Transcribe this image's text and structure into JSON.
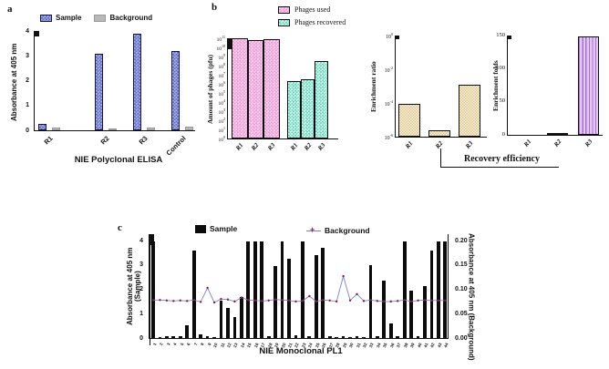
{
  "panels": {
    "a": "a",
    "b": "b",
    "c": "c"
  },
  "chart_data": [
    {
      "id": "a",
      "type": "bar",
      "xlabel": "NIE Polyclonal ELISA",
      "ylabel": "Absorbance at 405 nm",
      "ylim": [
        0,
        4
      ],
      "yticks": [
        0,
        1,
        2,
        3,
        4
      ],
      "categories": [
        "R1",
        "R2",
        "R3",
        "Control"
      ],
      "series": [
        {
          "name": "Sample",
          "values": [
            0.25,
            3.1,
            3.9,
            3.2
          ]
        },
        {
          "name": "Background",
          "values": [
            0.1,
            0.05,
            0.1,
            0.15
          ]
        }
      ],
      "legend_position": "top"
    },
    {
      "id": "b1",
      "type": "bar",
      "yscale": "log",
      "ylabel": "Amount of phages (pfu)",
      "ylim": [
        1,
        100000000000.0
      ],
      "yticks": [
        "10^0",
        "10^1",
        "10^2",
        "10^3",
        "10^4",
        "10^5",
        "10^6",
        "10^7",
        "10^8",
        "10^9",
        "10^10",
        "10^11"
      ],
      "categories": [
        "R1",
        "R2",
        "R3"
      ],
      "series": [
        {
          "name": "Phages used",
          "values": [
            100000000000.0,
            60000000000.0,
            80000000000.0
          ]
        },
        {
          "name": "Phages recovered",
          "values": [
            2000000.0,
            3000000.0,
            300000000.0
          ]
        }
      ],
      "legend_position": "top"
    },
    {
      "id": "b2",
      "type": "bar",
      "yscale": "log",
      "ylabel": "Enrichment ratio",
      "ylim": [
        1e-06,
        1
      ],
      "yticks": [
        "10^0",
        "10^-2",
        "10^-4",
        "10^-6"
      ],
      "categories": [
        "R1",
        "R2",
        "R3"
      ],
      "series": [
        {
          "name": "Enrichment ratio",
          "values": [
            9e-05,
            2.5e-06,
            0.0012
          ]
        }
      ]
    },
    {
      "id": "b3",
      "type": "bar",
      "ylabel": "Enrichment folds",
      "ylim": [
        0,
        150
      ],
      "yticks": [
        0,
        50,
        100,
        150
      ],
      "categories": [
        "R1",
        "R2",
        "R3"
      ],
      "series": [
        {
          "name": "Enrichment folds",
          "values": [
            0,
            3,
            149
          ]
        }
      ],
      "annotation": "Recovery efficiency"
    },
    {
      "id": "c",
      "type": "bar+line",
      "xlabel": "NIE Monoclonal PL1",
      "ylabel_left": "Absorbance at 405 nm (Sample)",
      "ylabel_right": "Absorbance at 405 nm (Background)",
      "ylim_left": [
        0,
        4
      ],
      "yticks_left": [
        0,
        1,
        2,
        3,
        4
      ],
      "ylim_right": [
        0,
        0.2
      ],
      "yticks_right": [
        "0.00",
        "0.05",
        "0.10",
        "0.15",
        "0.20"
      ],
      "legend_marker": "+",
      "categories": [
        "1",
        "2",
        "3",
        "4",
        "5",
        "6",
        "7",
        "8",
        "9",
        "10",
        "11",
        "12",
        "13",
        "14",
        "15",
        "16",
        "17",
        "18",
        "19",
        "20",
        "21",
        "22",
        "23",
        "24",
        "25",
        "26",
        "27",
        "28",
        "29",
        "30",
        "31",
        "32",
        "33",
        "34",
        "35",
        "36",
        "37",
        "38",
        "39",
        "40",
        "41",
        "42",
        "43",
        "44"
      ],
      "series": [
        {
          "name": "Sample",
          "type": "bar",
          "axis": "left",
          "values": [
            3.95,
            0.05,
            0.06,
            0.09,
            0.06,
            0.53,
            3.6,
            0.15,
            0.07,
            0.05,
            1.52,
            1.22,
            0.86,
            1.7,
            3.95,
            3.95,
            3.95,
            0.06,
            2.95,
            3.95,
            3.27,
            0.1,
            3.95,
            0.06,
            3.4,
            3.7,
            0.06,
            0.05,
            0.06,
            0.05,
            0.06,
            0.05,
            3.0,
            0.06,
            2.35,
            0.6,
            0.06,
            3.95,
            1.95,
            0.08,
            2.15,
            3.6,
            3.95,
            3.95
          ]
        },
        {
          "name": "Background",
          "type": "line",
          "axis": "right",
          "values": [
            0.078,
            0.078,
            0.077,
            0.076,
            0.077,
            0.076,
            0.078,
            0.074,
            0.103,
            0.073,
            0.08,
            0.079,
            0.075,
            0.083,
            0.078,
            0.077,
            0.076,
            0.077,
            0.079,
            0.078,
            0.077,
            0.075,
            0.076,
            0.086,
            0.075,
            0.078,
            0.077,
            0.075,
            0.127,
            0.077,
            0.09,
            0.076,
            0.078,
            0.076,
            0.075,
            0.075,
            0.076,
            0.078,
            0.075,
            0.077,
            0.078,
            0.077,
            0.077,
            0.077
          ]
        }
      ],
      "colors": {
        "bar": "#0b0b0b",
        "line": "#7b7fd4",
        "marker": "#8b1f35"
      }
    }
  ]
}
